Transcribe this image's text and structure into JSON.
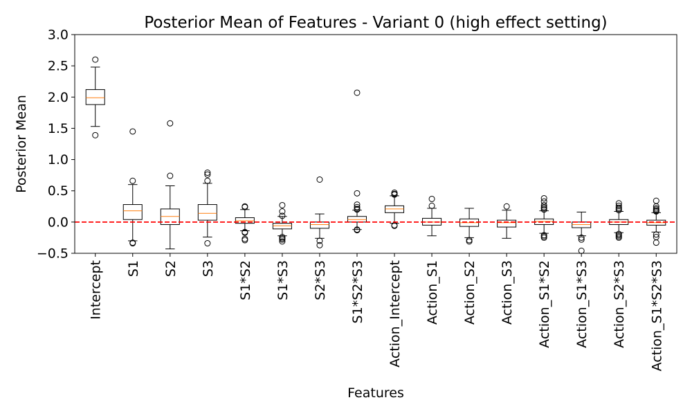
{
  "chart_data": {
    "type": "box",
    "title": "Posterior Mean of Features - Variant 0 (high effect setting)",
    "xlabel": "Features",
    "ylabel": "Posterior Mean",
    "ylim": [
      -0.5,
      3.0
    ],
    "yticks": [
      -0.5,
      0.0,
      0.5,
      1.0,
      1.5,
      2.0,
      2.5,
      3.0
    ],
    "ytick_labels": [
      "−0.5",
      "0.0",
      "0.5",
      "1.0",
      "1.5",
      "2.0",
      "2.5",
      "3.0"
    ],
    "grid": false,
    "reference_line": {
      "y": 0.0,
      "color": "#ff0000",
      "style": "dashed"
    },
    "colors": {
      "box": "#000000",
      "median": "#ff7f0e",
      "reference": "#ff0000"
    },
    "categories": [
      "Intercept",
      "S1",
      "S2",
      "S3",
      "S1*S2",
      "S1*S3",
      "S2*S3",
      "S1*S2*S3",
      "Action_Intercept",
      "Action_S1",
      "Action_S2",
      "Action_S3",
      "Action_S1*S2",
      "Action_S1*S3",
      "Action_S2*S3",
      "Action_S1*S2*S3"
    ],
    "boxes": [
      {
        "label": "Intercept",
        "whisker_low": 1.53,
        "q1": 1.88,
        "median": 1.99,
        "q3": 2.12,
        "whisker_high": 2.48,
        "outliers": [
          2.6,
          1.39
        ]
      },
      {
        "label": "S1",
        "whisker_low": -0.3,
        "q1": 0.04,
        "median": 0.18,
        "q3": 0.28,
        "whisker_high": 0.6,
        "outliers": [
          1.45,
          0.66,
          -0.33,
          -0.34
        ]
      },
      {
        "label": "S2",
        "whisker_low": -0.43,
        "q1": -0.04,
        "median": 0.09,
        "q3": 0.21,
        "whisker_high": 0.58,
        "outliers": [
          1.58,
          0.74
        ]
      },
      {
        "label": "S3",
        "whisker_low": -0.24,
        "q1": 0.03,
        "median": 0.14,
        "q3": 0.28,
        "whisker_high": 0.62,
        "outliers": [
          0.79,
          0.76,
          0.66,
          -0.34
        ]
      },
      {
        "label": "S1*S2",
        "whisker_low": -0.14,
        "q1": -0.02,
        "median": 0.02,
        "q3": 0.07,
        "whisker_high": 0.2,
        "outliers": [
          0.25,
          0.24,
          -0.16,
          -0.17,
          -0.27,
          -0.29
        ]
      },
      {
        "label": "S1*S3",
        "whisker_low": -0.22,
        "q1": -0.11,
        "median": -0.06,
        "q3": -0.02,
        "whisker_high": 0.09,
        "outliers": [
          0.27,
          0.17,
          0.1,
          -0.24,
          -0.26,
          -0.28,
          -0.31
        ]
      },
      {
        "label": "S2*S3",
        "whisker_low": -0.26,
        "q1": -0.1,
        "median": -0.04,
        "q3": 0.0,
        "whisker_high": 0.13,
        "outliers": [
          0.68,
          -0.3,
          -0.37
        ]
      },
      {
        "label": "S1*S2*S3",
        "whisker_low": -0.12,
        "q1": 0.0,
        "median": 0.04,
        "q3": 0.09,
        "whisker_high": 0.19,
        "outliers": [
          2.07,
          0.46,
          0.28,
          0.24,
          0.21,
          0.2,
          -0.12,
          -0.13
        ]
      },
      {
        "label": "Action_Intercept",
        "whisker_low": -0.02,
        "q1": 0.15,
        "median": 0.21,
        "q3": 0.26,
        "whisker_high": 0.42,
        "outliers": [
          0.47,
          0.45,
          0.44,
          -0.05,
          -0.06
        ]
      },
      {
        "label": "Action_S1",
        "whisker_low": -0.22,
        "q1": -0.05,
        "median": 0.0,
        "q3": 0.06,
        "whisker_high": 0.22,
        "outliers": [
          0.37,
          0.26
        ]
      },
      {
        "label": "Action_S2",
        "whisker_low": -0.25,
        "q1": -0.07,
        "median": -0.01,
        "q3": 0.05,
        "whisker_high": 0.22,
        "outliers": [
          -0.29,
          -0.31
        ]
      },
      {
        "label": "Action_S3",
        "whisker_low": -0.26,
        "q1": -0.08,
        "median": -0.01,
        "q3": 0.03,
        "whisker_high": 0.19,
        "outliers": [
          0.25
        ]
      },
      {
        "label": "Action_S1*S2",
        "whisker_low": -0.18,
        "q1": -0.04,
        "median": 0.01,
        "q3": 0.05,
        "whisker_high": 0.18,
        "outliers": [
          0.38,
          0.33,
          0.27,
          0.24,
          0.22,
          0.2,
          -0.21,
          -0.23,
          -0.25
        ]
      },
      {
        "label": "Action_S1*S3",
        "whisker_low": -0.22,
        "q1": -0.09,
        "median": -0.04,
        "q3": 0.0,
        "whisker_high": 0.16,
        "outliers": [
          -0.25,
          -0.28,
          -0.46
        ]
      },
      {
        "label": "Action_S2*S3",
        "whisker_low": -0.17,
        "q1": -0.04,
        "median": 0.0,
        "q3": 0.04,
        "whisker_high": 0.17,
        "outliers": [
          0.3,
          0.26,
          0.23,
          0.21,
          0.19,
          -0.19,
          -0.21,
          -0.23,
          -0.25
        ]
      },
      {
        "label": "Action_S1*S2*S3",
        "whisker_low": -0.16,
        "q1": -0.05,
        "median": -0.01,
        "q3": 0.03,
        "whisker_high": 0.15,
        "outliers": [
          0.34,
          0.25,
          0.22,
          0.2,
          0.18,
          0.17,
          -0.2,
          -0.24,
          -0.33
        ]
      }
    ]
  }
}
